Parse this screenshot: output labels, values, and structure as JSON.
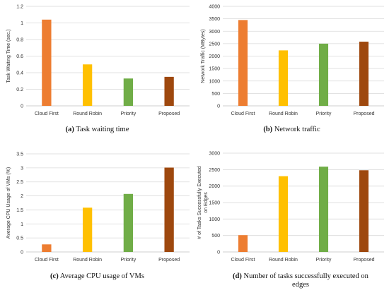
{
  "colors": [
    "#ED7D31",
    "#FFC000",
    "#70AD47",
    "#9E480E"
  ],
  "chart_data": [
    {
      "type": "bar",
      "caption_letter": "(a)",
      "caption_text": " Task waiting time",
      "ylabel": "Task Waiting Time (sec.)",
      "categories": [
        "Cloud First",
        "Round Robin",
        "Priority",
        "Proposed"
      ],
      "values": [
        1.04,
        0.5,
        0.33,
        0.35
      ],
      "ylim": [
        0,
        1.2
      ],
      "yticks": [
        "0",
        "0.2",
        "0.4",
        "0.6",
        "0.8",
        "1",
        "1.2"
      ],
      "grid": true
    },
    {
      "type": "bar",
      "caption_letter": "(b)",
      "caption_text": " Network traffic",
      "ylabel": "Network Traffic (MBytes)",
      "categories": [
        "Cloud First",
        "Round Robin",
        "Priority",
        "Proposed"
      ],
      "values": [
        3450,
        2230,
        2500,
        2580
      ],
      "ylim": [
        0,
        4000
      ],
      "yticks": [
        "0",
        "500",
        "1000",
        "1500",
        "2000",
        "2500",
        "3000",
        "3500",
        "4000"
      ],
      "grid": true
    },
    {
      "type": "bar",
      "caption_letter": "(c)",
      "caption_text": " Average CPU usage of VMs",
      "ylabel": "Average CPU Usage of VMs (%)",
      "categories": [
        "Cloud First",
        "Round Robin",
        "Priority",
        "Proposed"
      ],
      "values": [
        0.27,
        1.58,
        2.07,
        3.01
      ],
      "ylim": [
        0,
        3.5
      ],
      "yticks": [
        "0",
        "0.5",
        "1",
        "1.5",
        "2",
        "2.5",
        "3",
        "3.5"
      ],
      "grid": true
    },
    {
      "type": "bar",
      "caption_letter": "(d)",
      "caption_text": " Number of tasks successfully executed on edges",
      "ylabel": "# of Tasks Successfully Executed on Edges",
      "categories": [
        "Cloud First",
        "Round Robin",
        "Priority",
        "Proposed"
      ],
      "values": [
        510,
        2300,
        2590,
        2480
      ],
      "ylim": [
        0,
        3000
      ],
      "yticks": [
        "0",
        "500",
        "1000",
        "1500",
        "2000",
        "2500",
        "3000"
      ],
      "grid": true
    }
  ]
}
